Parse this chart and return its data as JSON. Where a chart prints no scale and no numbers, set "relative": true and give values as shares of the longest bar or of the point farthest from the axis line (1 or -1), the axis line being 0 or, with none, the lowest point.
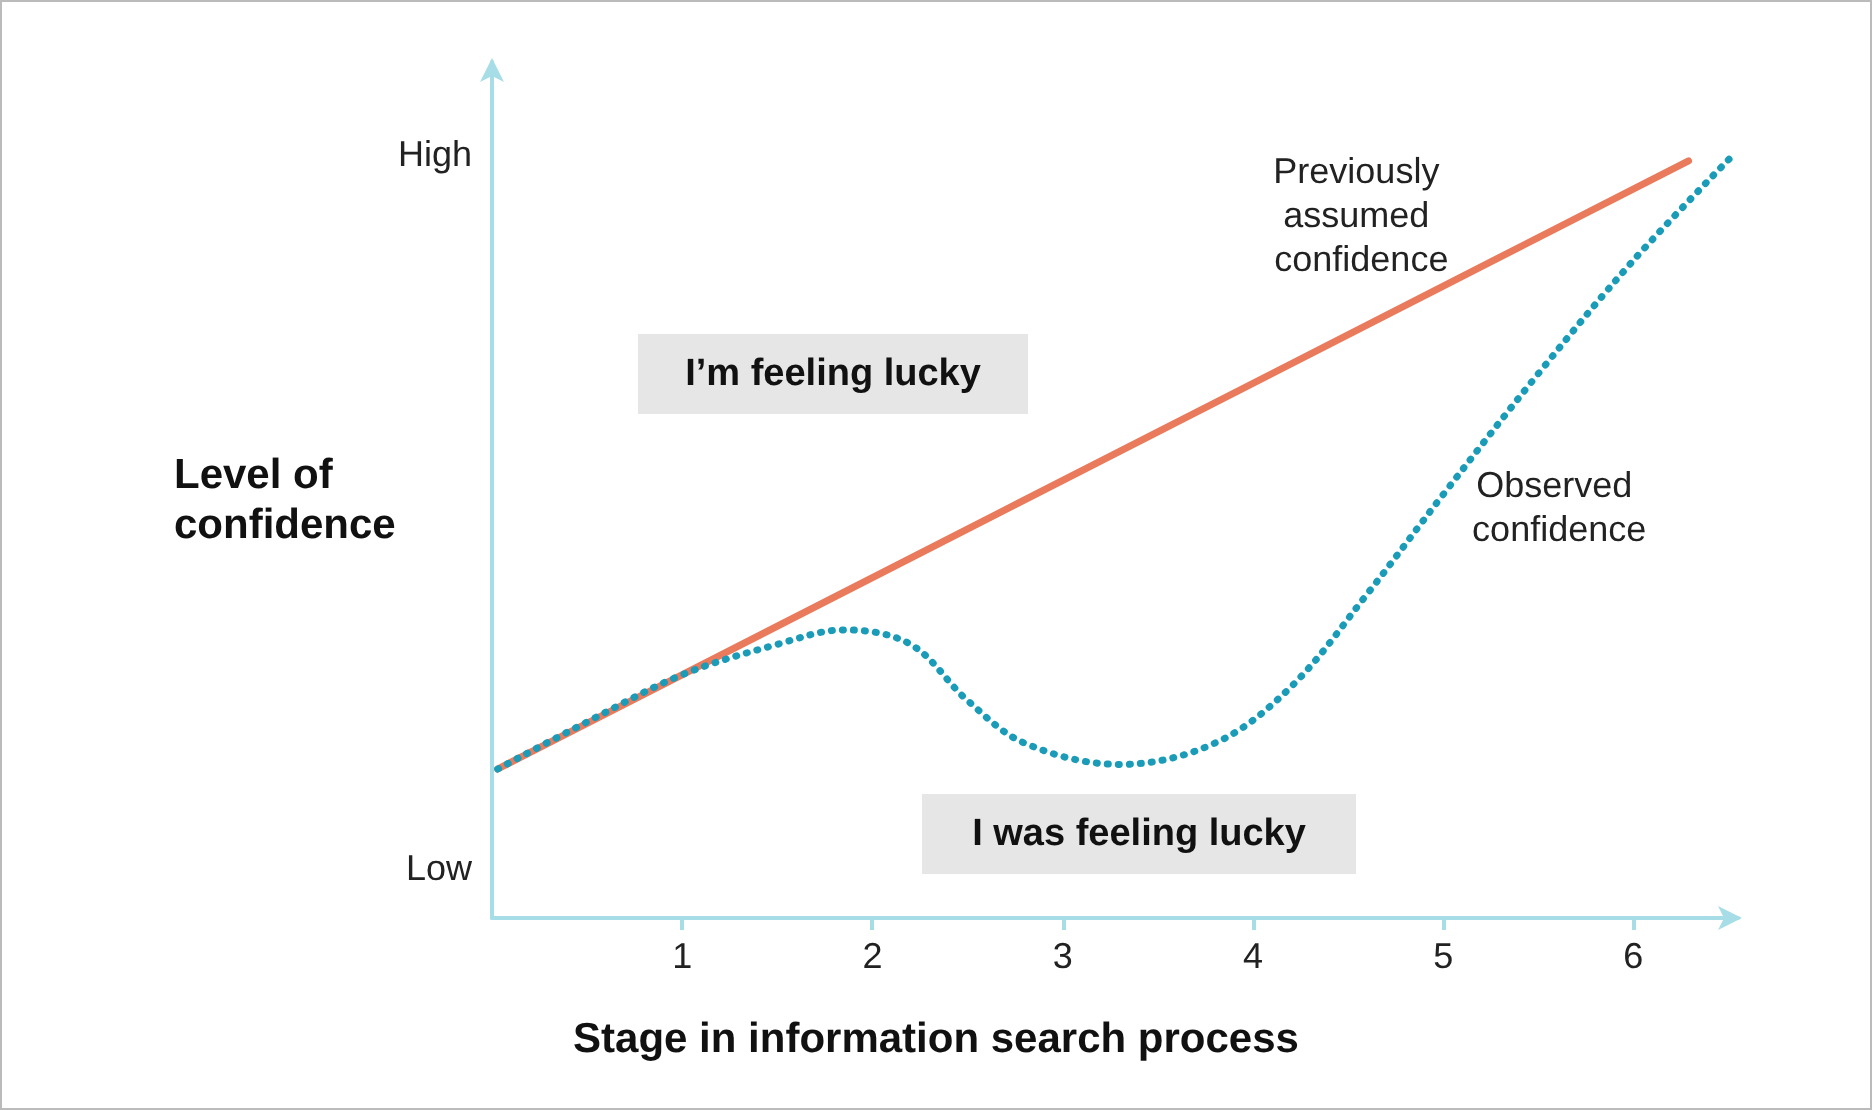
{
  "chart_data": {
    "type": "line",
    "xlabel": "Stage in information search process",
    "ylabel": "Level of confidence",
    "annotations": [
      "I’m feeling lucky",
      "I was feeling lucky",
      "High",
      "Low"
    ],
    "xlim": [
      0,
      6.55
    ],
    "xticks": [
      1,
      2,
      3,
      4,
      5,
      6
    ],
    "relative": true,
    "grid": false,
    "legend": false,
    "marker": "none",
    "series": [
      {
        "name": "Previously assumed confidence",
        "color": "#ea7a5c",
        "line_style": "solid",
        "x": [
          0.03,
          6.29
        ],
        "values": [
          0.196,
          0.996
        ]
      },
      {
        "name": "Observed confidence",
        "color": "#1a9bb8",
        "line_style": "dotted",
        "x": [
          0.03,
          0.5,
          1.0,
          1.5,
          1.85,
          2.2,
          2.5,
          2.8,
          3.3,
          3.8,
          4.2,
          4.6,
          5.0,
          5.5,
          6.0,
          6.51
        ],
        "values": [
          0.196,
          0.258,
          0.32,
          0.36,
          0.379,
          0.36,
          0.286,
          0.23,
          0.202,
          0.23,
          0.304,
          0.426,
          0.557,
          0.716,
          0.865,
          1
        ]
      }
    ]
  }
}
